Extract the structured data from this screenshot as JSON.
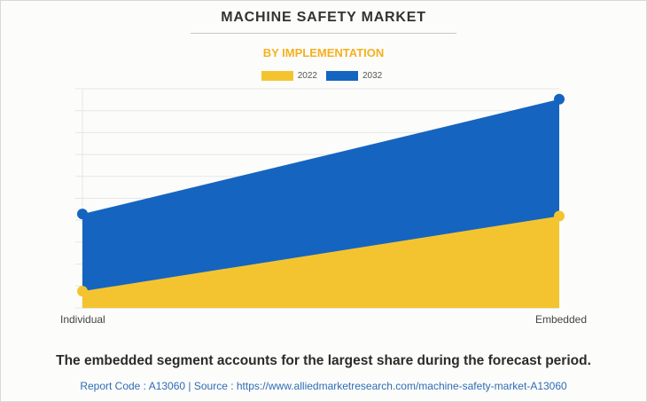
{
  "header": {
    "title": "MACHINE SAFETY MARKET",
    "subtitle": "BY IMPLEMENTATION"
  },
  "chart_data": {
    "type": "area",
    "categories": [
      "Individual",
      "Embedded"
    ],
    "series": [
      {
        "name": "2022",
        "values": [
          0.08,
          0.44
        ],
        "color": "#f4c430"
      },
      {
        "name": "2032",
        "values": [
          0.45,
          1.0
        ],
        "color": "#1565c0"
      }
    ],
    "stacked": false,
    "ylim": [
      0,
      1.05
    ],
    "grid": true,
    "legend_position": "top-center",
    "xlabel": "",
    "ylabel": ""
  },
  "footer": {
    "caption": "The embedded segment accounts for the largest share during the forecast period.",
    "source": "Report Code : A13060  |  Source : https://www.alliedmarketresearch.com/machine-safety-market-A13060"
  }
}
